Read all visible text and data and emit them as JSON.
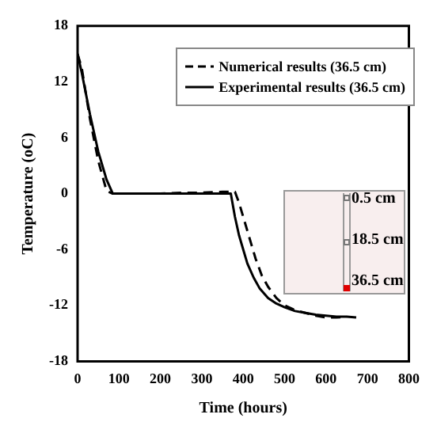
{
  "chart_data": {
    "type": "line",
    "xlabel": "Time (hours)",
    "ylabel": "Temperature (oC)",
    "xlim": [
      0,
      800
    ],
    "xticks": [
      0,
      100,
      200,
      300,
      400,
      500,
      600,
      700,
      800
    ],
    "ylim": [
      -18,
      18
    ],
    "yticks": [
      -18,
      -12,
      -6,
      0,
      6,
      12,
      18
    ],
    "grid": false,
    "legend": "top right",
    "marker": "none",
    "annotations": [
      "0.5 cm",
      "18.5 cm",
      "36.5 cm"
    ],
    "series": [
      {
        "name": "Numerical results (36.5 cm)",
        "color": "#000000",
        "line_style": "dashed",
        "x": [
          0,
          10,
          30,
          50,
          70,
          85,
          100,
          150,
          200,
          250,
          300,
          350,
          380,
          390,
          400,
          410,
          420,
          430,
          445,
          460,
          480,
          500,
          525,
          550,
          575,
          600,
          625,
          650,
          675
        ],
        "values": [
          15,
          13.5,
          8,
          3.5,
          0.3,
          0,
          0,
          0,
          0,
          0.1,
          0.1,
          0.2,
          0.2,
          -1,
          -2.5,
          -4,
          -5.5,
          -7,
          -8.8,
          -10,
          -11.2,
          -12,
          -12.5,
          -12.8,
          -13.1,
          -13.3,
          -13.3,
          -13.2,
          -13.3
        ]
      },
      {
        "name": "Experimental results (36.5 cm)",
        "color": "#000000",
        "line_style": "solid",
        "x": [
          0,
          10,
          30,
          50,
          70,
          85,
          100,
          150,
          200,
          250,
          300,
          350,
          370,
          372,
          380,
          390,
          400,
          410,
          425,
          440,
          460,
          480,
          500,
          525,
          550,
          575,
          600,
          625,
          650
        ],
        "values": [
          15,
          13,
          8.5,
          4.5,
          1.5,
          0,
          0,
          0,
          0,
          0,
          0,
          0,
          0,
          -0.5,
          -2.5,
          -4.5,
          -6,
          -7.5,
          -9,
          -10.2,
          -11.2,
          -11.8,
          -12.2,
          -12.6,
          -12.8,
          -13,
          -13.1,
          -13.2,
          -13.2
        ]
      }
    ]
  }
}
